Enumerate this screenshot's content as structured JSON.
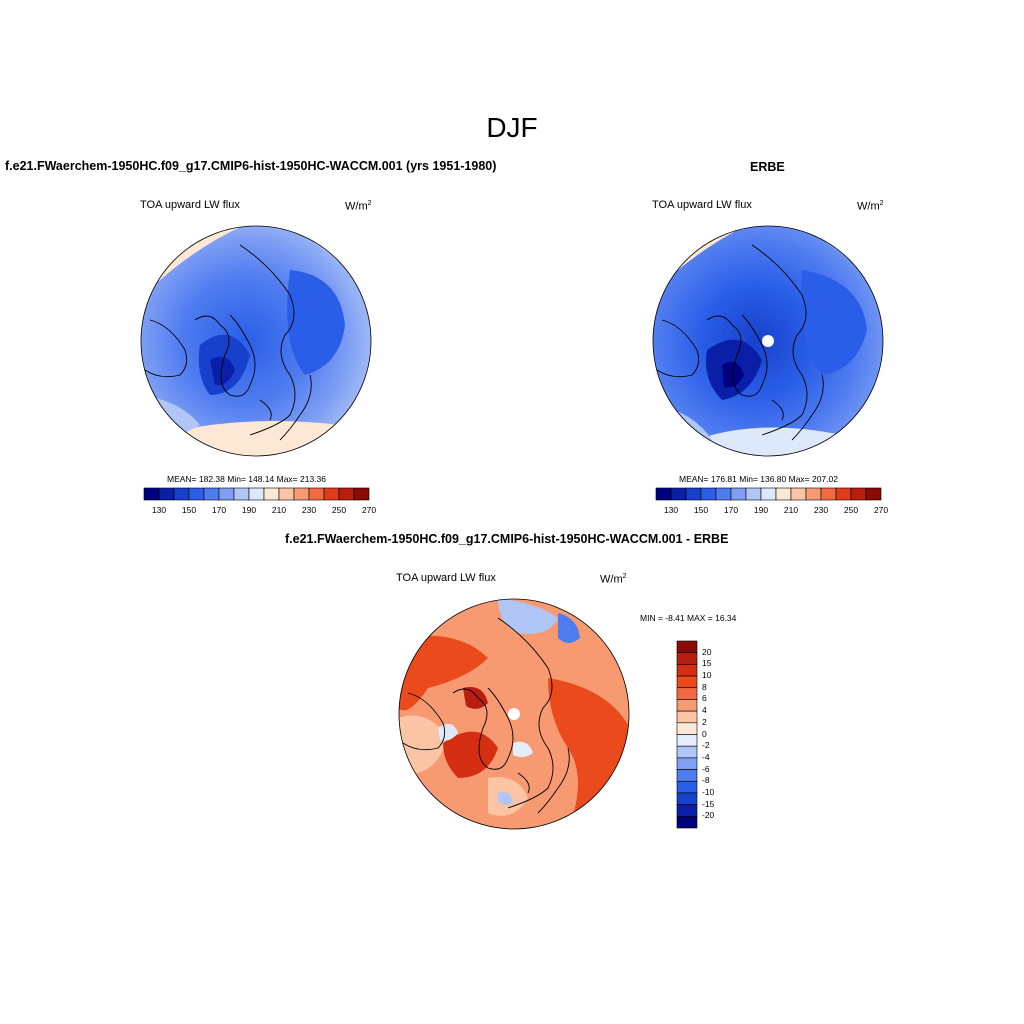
{
  "figure": {
    "season_title": "DJF"
  },
  "panel_model": {
    "title": "f.e21.FWaerchem-1950HC.f09_g17.CMIP6-hist-1950HC-WACCM.001 (yrs 1951-1980)",
    "field": "TOA upward LW flux",
    "units_base": "W/m",
    "units_exp": "2",
    "stats": "MEAN= 182.38  Min= 148.14  Max= 213.36"
  },
  "panel_obs": {
    "title": "ERBE",
    "field": "TOA upward LW flux",
    "units_base": "W/m",
    "units_exp": "2",
    "stats": "MEAN= 176.81  Min= 136.80  Max= 207.02"
  },
  "panel_diff": {
    "title": "f.e21.FWaerchem-1950HC.f09_g17.CMIP6-hist-1950HC-WACCM.001 - ERBE",
    "field": "TOA upward LW flux",
    "units_base": "W/m",
    "units_exp": "2",
    "stats": "MIN =  -8.41 MAX =  16.34"
  },
  "abs_colorbar": {
    "colors": [
      "#00007f",
      "#0a1fa8",
      "#1741cc",
      "#2a5ee8",
      "#4f7cf0",
      "#7f9ff4",
      "#b0c6f7",
      "#dde9fb",
      "#fde8d6",
      "#fbc5a5",
      "#f79a72",
      "#f26a42",
      "#e03c1c",
      "#b81d10",
      "#8b0a05"
    ],
    "tick_labels": [
      "130",
      "150",
      "170",
      "190",
      "210",
      "230",
      "250",
      "270"
    ]
  },
  "diff_colorbar": {
    "colors_top_to_bottom": [
      "#8b0a05",
      "#b81d10",
      "#d62e12",
      "#ea4a1c",
      "#f26a42",
      "#f79a72",
      "#fbc5a5",
      "#fde8d6",
      "#e3eefc",
      "#b0c6f7",
      "#7f9ff4",
      "#4f7cf0",
      "#2a5ee8",
      "#1741cc",
      "#0a1fa8",
      "#00007f"
    ],
    "tick_labels_top_to_bottom": [
      "20",
      "15",
      "10",
      "8",
      "6",
      "4",
      "2",
      "0",
      "-2",
      "-4",
      "-6",
      "-8",
      "-10",
      "-15",
      "-20"
    ]
  },
  "colors": {
    "outline": "#000000",
    "missing": "#ffffff"
  }
}
